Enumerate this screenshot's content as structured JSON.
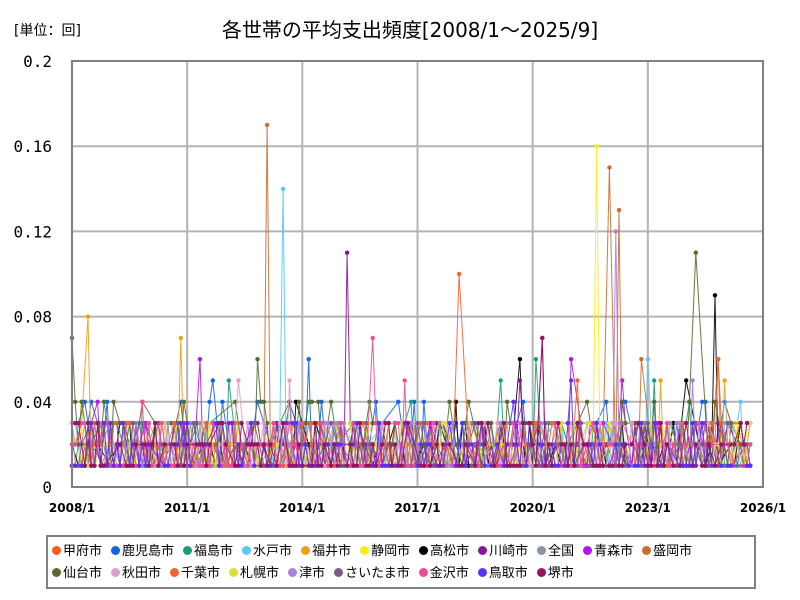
{
  "header": {
    "unit_label": "[単位：回]",
    "title": "各世帯の平均支出頻度[2008/1～2025/9]"
  },
  "chart_data": {
    "type": "line",
    "title": "各世帯の平均支出頻度[2008/1～2025/9]",
    "unit": "回",
    "xlabel": "",
    "ylabel": "",
    "x_range": [
      "2008/1",
      "2025/9"
    ],
    "x_ticks": [
      "2008/1",
      "2011/1",
      "2014/1",
      "2017/1",
      "2020/1",
      "2023/1",
      "2026/1"
    ],
    "y_ticks": [
      "0",
      "0.04",
      "0.08",
      "0.12",
      "0.16",
      "0.2"
    ],
    "ylim": [
      0,
      0.2
    ],
    "grid": true,
    "legend_position": "bottom",
    "baseline_note": "Most series fluctuate between 0.01 and 0.03 monthly; notable peaks listed per series (approximate, read from chart).",
    "series": [
      {
        "name": "甲府市",
        "color": "#ff5a1e",
        "base": 0.01,
        "peaks": [
          [
            "2019/6",
            0.02
          ],
          [
            "2024/9",
            0.03
          ]
        ]
      },
      {
        "name": "鹿児島市",
        "color": "#1464e6",
        "base": 0.02,
        "peaks": [
          [
            "2009/3",
            0.03
          ],
          [
            "2011/9",
            0.05
          ],
          [
            "2014/3",
            0.06
          ],
          [
            "2016/7",
            0.04
          ],
          [
            "2023/11",
            0.03
          ]
        ]
      },
      {
        "name": "福島市",
        "color": "#14a078",
        "base": 0.01,
        "peaks": [
          [
            "2012/2",
            0.05
          ],
          [
            "2016/11",
            0.04
          ],
          [
            "2019/3",
            0.05
          ],
          [
            "2020/2",
            0.06
          ],
          [
            "2023/3",
            0.05
          ],
          [
            "2024/2",
            0.04
          ]
        ]
      },
      {
        "name": "水戸市",
        "color": "#5ac8f0",
        "base": 0.01,
        "peaks": [
          [
            "2013/7",
            0.14
          ],
          [
            "2023/1",
            0.06
          ],
          [
            "2025/6",
            0.04
          ]
        ]
      },
      {
        "name": "福井市",
        "color": "#f0a014",
        "base": 0.01,
        "peaks": [
          [
            "2008/6",
            0.08
          ],
          [
            "2010/11",
            0.07
          ],
          [
            "2023/5",
            0.05
          ],
          [
            "2025/1",
            0.05
          ]
        ]
      },
      {
        "name": "静岡市",
        "color": "#ffeb14",
        "base": 0.01,
        "peaks": [
          [
            "2021/9",
            0.16
          ],
          [
            "2009/5",
            0.03
          ]
        ]
      },
      {
        "name": "高松市",
        "color": "#000000",
        "base": 0.01,
        "peaks": [
          [
            "2019/9",
            0.06
          ],
          [
            "2018/1",
            0.04
          ],
          [
            "2024/10",
            0.09
          ],
          [
            "2013/11",
            0.04
          ],
          [
            "2024/1",
            0.05
          ]
        ]
      },
      {
        "name": "川崎市",
        "color": "#8c1496",
        "base": 0.01,
        "peaks": [
          [
            "2015/3",
            0.11
          ],
          [
            "2020/4",
            0.07
          ],
          [
            "2019/9",
            0.05
          ]
        ]
      },
      {
        "name": "全国",
        "color": "#8c96a0",
        "base": 0.01,
        "peaks": []
      },
      {
        "name": "青森市",
        "color": "#b414f0",
        "base": 0.01,
        "peaks": [
          [
            "2011/5",
            0.06
          ],
          [
            "2021/1",
            0.06
          ],
          [
            "2022/5",
            0.05
          ],
          [
            "2008/9",
            0.04
          ]
        ]
      },
      {
        "name": "盛岡市",
        "color": "#c86e32",
        "base": 0.01,
        "peaks": [
          [
            "2013/2",
            0.17
          ],
          [
            "2022/1",
            0.15
          ],
          [
            "2022/4",
            0.13
          ],
          [
            "2022/11",
            0.06
          ],
          [
            "2024/11",
            0.06
          ]
        ]
      },
      {
        "name": "仙台市",
        "color": "#556b2f",
        "base": 0.02,
        "peaks": [
          [
            "2008/1",
            0.07
          ],
          [
            "2012/11",
            0.06
          ],
          [
            "2024/4",
            0.11
          ]
        ]
      },
      {
        "name": "秋田市",
        "color": "#dca0c8",
        "base": 0.01,
        "peaks": [
          [
            "2012/5",
            0.05
          ],
          [
            "2013/9",
            0.05
          ]
        ]
      },
      {
        "name": "千葉市",
        "color": "#f06432",
        "base": 0.01,
        "peaks": [
          [
            "2018/2",
            0.1
          ],
          [
            "2024/11",
            0.06
          ],
          [
            "2021/3",
            0.05
          ]
        ]
      },
      {
        "name": "札幌市",
        "color": "#dcdc3c",
        "base": 0.01,
        "peaks": [
          [
            "2010/6",
            0.03
          ]
        ]
      },
      {
        "name": "津市",
        "color": "#a882dc",
        "base": 0.01,
        "peaks": [
          [
            "2022/3",
            0.12
          ],
          [
            "2024/3",
            0.05
          ]
        ]
      },
      {
        "name": "さいたま市",
        "color": "#7d5a8c",
        "base": 0.01,
        "peaks": [
          [
            "2015/9",
            0.03
          ]
        ]
      },
      {
        "name": "金沢市",
        "color": "#f04b96",
        "base": 0.01,
        "peaks": [
          [
            "2009/11",
            0.04
          ],
          [
            "2015/11",
            0.07
          ],
          [
            "2016/9",
            0.05
          ]
        ]
      },
      {
        "name": "鳥取市",
        "color": "#5a32f0",
        "base": 0.01,
        "peaks": [
          [
            "2021/1",
            0.05
          ],
          [
            "2019/7",
            0.04
          ]
        ]
      },
      {
        "name": "堺市",
        "color": "#961464",
        "base": 0.01,
        "peaks": [
          [
            "2020/4",
            0.07
          ],
          [
            "2012/9",
            0.02
          ]
        ]
      }
    ]
  },
  "legend": {
    "items": [
      {
        "label": "甲府市",
        "color": "#ff5a1e"
      },
      {
        "label": "鹿児島市",
        "color": "#1464e6"
      },
      {
        "label": "福島市",
        "color": "#14a078"
      },
      {
        "label": "水戸市",
        "color": "#5ac8f0"
      },
      {
        "label": "福井市",
        "color": "#f0a014"
      },
      {
        "label": "静岡市",
        "color": "#ffeb14"
      },
      {
        "label": "高松市",
        "color": "#000000"
      },
      {
        "label": "川崎市",
        "color": "#8c1496"
      },
      {
        "label": "全国",
        "color": "#8c96a0"
      },
      {
        "label": "青森市",
        "color": "#b414f0"
      },
      {
        "label": "盛岡市",
        "color": "#c86e32"
      },
      {
        "label": "仙台市",
        "color": "#556b2f"
      },
      {
        "label": "秋田市",
        "color": "#dca0c8"
      },
      {
        "label": "千葉市",
        "color": "#f06432"
      },
      {
        "label": "札幌市",
        "color": "#dcdc3c"
      },
      {
        "label": "津市",
        "color": "#a882dc"
      },
      {
        "label": "さいたま市",
        "color": "#7d5a8c"
      },
      {
        "label": "金沢市",
        "color": "#f04b96"
      },
      {
        "label": "鳥取市",
        "color": "#5a32f0"
      },
      {
        "label": "堺市",
        "color": "#961464"
      }
    ]
  }
}
